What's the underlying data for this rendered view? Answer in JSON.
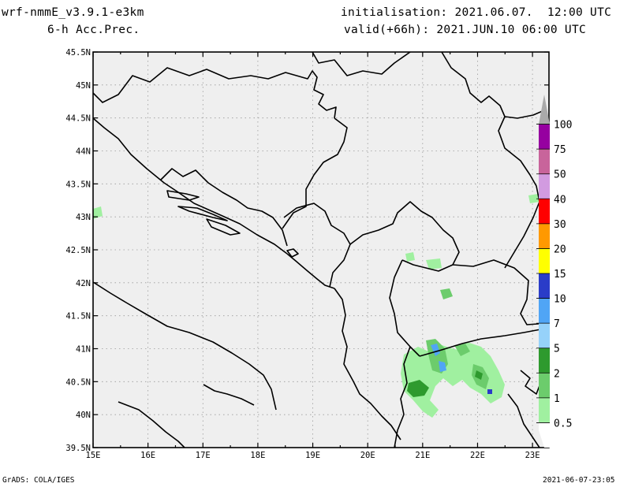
{
  "header": {
    "model": "wrf-nmmE_v3.9.1-e3km",
    "field": "6-h Acc.Prec.",
    "init": "initialisation: 2021.06.07.  12:00 UTC",
    "valid": "valid(+66h): 2021.JUN.10 06:00 UTC"
  },
  "footer": {
    "credit": "GrADS: COLA/IGES",
    "timestamp": "2021-06-07-23:05"
  },
  "map": {
    "lon_ticks": [
      "15E",
      "16E",
      "17E",
      "18E",
      "19E",
      "20E",
      "21E",
      "22E",
      "23E"
    ],
    "lat_ticks": [
      "39.5N",
      "40N",
      "40.5N",
      "41N",
      "41.5N",
      "42N",
      "42.5N",
      "43N",
      "43.5N",
      "44N",
      "44.5N",
      "45N",
      "45.5N"
    ],
    "lon_range": [
      15,
      23.3
    ],
    "lat_range": [
      39.5,
      45.5
    ]
  },
  "legend": {
    "levels": [
      "0.5",
      "1",
      "2",
      "5",
      "7",
      "10",
      "15",
      "20",
      "30",
      "40",
      "50",
      "75",
      "100"
    ],
    "colors": [
      "#ffffff",
      "#a0f0a0",
      "#6ccc6c",
      "#2e9a2e",
      "#96d2fa",
      "#50a5f5",
      "#2a3cc8",
      "#ffff00",
      "#ff9900",
      "#ff0000",
      "#d29be0",
      "#c8649b",
      "#9600a0",
      "#aaaaaa"
    ]
  }
}
